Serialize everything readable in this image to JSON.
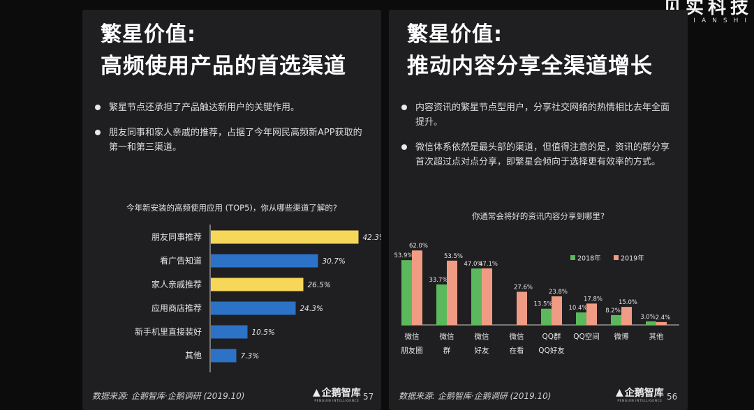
{
  "watermark": {
    "main": "见实科技",
    "sub": "JIANSHI"
  },
  "left": {
    "title1": "繁星价值:",
    "title2": "高频使用产品的首选渠道",
    "bullets": [
      "繁星节点还承担了产品触达新用户的关键作用。",
      "朋友同事和家人亲戚的推荐，占据了今年网民高频新APP获取的第一和第三渠道。"
    ],
    "source": "数据来源: 企鹅智库·企鹅调研 (2019.10)",
    "page": "57",
    "logo": {
      "name": "企鹅智库",
      "sub": "PENGUIN INTELLIGENCE"
    }
  },
  "right": {
    "title1": "繁星价值:",
    "title2": "推动内容分享全渠道增长",
    "bullets": [
      "内容资讯的繁星节点型用户，分享社交网络的热情相比去年全面提升。",
      "微信体系依然是最头部的渠道，但值得注意的是，资讯的群分享首次超过点对点分享，即繁星会倾向于选择更有效率的方式。"
    ],
    "source": "数据来源: 企鹅智库·企鹅调研 (2019.10)",
    "page": "56",
    "logo": {
      "name": "企鹅智库",
      "sub": "PENGUIN INTELLIGENCE"
    }
  },
  "colors": {
    "yellow": "#f7d75a",
    "blue": "#2c72c7",
    "green": "#5cb85c",
    "salmon": "#f09c84"
  },
  "chart_data": [
    {
      "type": "bar",
      "orientation": "horizontal",
      "title": "今年新安装的高频使用应用 (TOP5)，你从哪些渠道了解的?",
      "categories": [
        "朋友同事推荐",
        "看广告知道",
        "家人亲戚推荐",
        "应用商店推荐",
        "新手机里直接装好",
        "其他"
      ],
      "values": [
        42.3,
        30.7,
        26.5,
        24.3,
        10.5,
        7.3
      ],
      "value_labels": [
        "42.3%",
        "30.7%",
        "26.5%",
        "24.3%",
        "10.5%",
        "7.3%"
      ],
      "bar_colors": [
        "#f7d75a",
        "#2c72c7",
        "#f7d75a",
        "#2c72c7",
        "#2c72c7",
        "#2c72c7"
      ],
      "xlim": [
        0,
        45
      ],
      "grid": false
    },
    {
      "type": "bar",
      "title": "你通常会将好的资讯内容分享到哪里?",
      "categories": [
        [
          "微信",
          "朋友圈"
        ],
        [
          "微信",
          "群"
        ],
        [
          "微信",
          "好友"
        ],
        [
          "微信",
          "在看"
        ],
        [
          "QQ群",
          "QQ好友"
        ],
        [
          "QQ空间"
        ],
        [
          "微博"
        ],
        [
          "其他"
        ]
      ],
      "series": [
        {
          "name": "2018年",
          "color": "#5cb85c",
          "values": [
            53.9,
            33.7,
            47.0,
            null,
            13.5,
            10.4,
            8.2,
            3.0
          ],
          "labels": [
            "53.9%",
            "33.7%",
            "47.0%",
            "",
            "13.5%",
            "10.4%",
            "8.2%",
            "3.0%"
          ]
        },
        {
          "name": "2019年",
          "color": "#f09c84",
          "values": [
            62.0,
            53.5,
            47.1,
            27.6,
            23.8,
            17.8,
            15.0,
            2.4
          ],
          "labels": [
            "62.0%",
            "53.5%",
            "47.1%",
            "27.6%",
            "23.8%",
            "17.8%",
            "15.0%",
            "2.4%"
          ]
        }
      ],
      "ylim": [
        0,
        65
      ],
      "legend": "top-right",
      "grid": false
    }
  ]
}
